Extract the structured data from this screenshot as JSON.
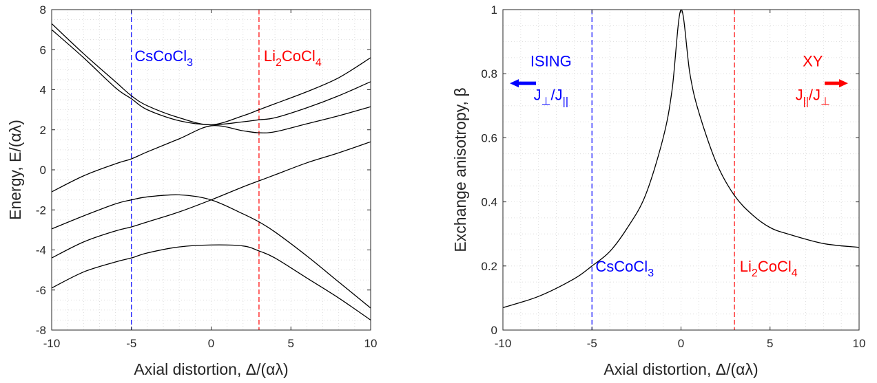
{
  "chart_data": [
    {
      "type": "line",
      "xlabel": "Axial distortion, Δ/(αλ)",
      "ylabel": "Energy, E/(αλ)",
      "xlim": [
        -10,
        10
      ],
      "ylim": [
        -8,
        8
      ],
      "xticks": [
        -10,
        -5,
        0,
        5,
        10
      ],
      "yticks": [
        -8,
        -6,
        -4,
        -2,
        0,
        2,
        4,
        6,
        8
      ],
      "grid": "minor dotted",
      "x": [
        -10,
        -8,
        -6,
        -5,
        -4,
        -2,
        0,
        2,
        3,
        4,
        6,
        8,
        10
      ],
      "series": [
        {
          "values": [
            7.3,
            5.8,
            4.4,
            3.7,
            3.2,
            2.6,
            2.25,
            2.7,
            3.0,
            3.3,
            3.9,
            4.6,
            5.6
          ],
          "color": "#000000"
        },
        {
          "values": [
            7.0,
            5.6,
            4.1,
            3.55,
            3.0,
            2.45,
            2.25,
            2.4,
            2.5,
            2.6,
            3.1,
            3.7,
            4.4
          ],
          "color": "#000000"
        },
        {
          "values": [
            -1.1,
            -0.3,
            0.3,
            0.55,
            0.9,
            1.55,
            2.2,
            1.95,
            1.85,
            1.9,
            2.3,
            2.7,
            3.15
          ],
          "color": "#000000"
        },
        {
          "values": [
            -2.95,
            -2.3,
            -1.7,
            -1.5,
            -1.35,
            -1.25,
            -1.5,
            -2.2,
            -2.6,
            -3.1,
            -4.3,
            -5.6,
            -6.9
          ],
          "color": "#000000"
        },
        {
          "values": [
            -4.4,
            -3.6,
            -3.05,
            -2.85,
            -2.6,
            -2.1,
            -1.5,
            -0.85,
            -0.55,
            -0.25,
            0.35,
            0.85,
            1.4
          ],
          "color": "#000000"
        },
        {
          "values": [
            -5.9,
            -5.1,
            -4.6,
            -4.4,
            -4.15,
            -3.85,
            -3.75,
            -3.8,
            -4.05,
            -4.4,
            -5.4,
            -6.4,
            -7.5
          ],
          "color": "#000000"
        }
      ],
      "vlines": [
        {
          "x": -5,
          "color": "#0000ff",
          "style": "dashed"
        },
        {
          "x": 3,
          "color": "#ff0000",
          "style": "dashed"
        }
      ],
      "annotations": [
        {
          "text": "CsCoCl",
          "sub": "3",
          "x": -4.8,
          "y": 5.7,
          "color": "#0000ff"
        },
        {
          "text": "Li",
          "sub": "2",
          "text2": "CoCl",
          "sub2": "4",
          "x": 3.3,
          "y": 5.7,
          "color": "#ff0000"
        }
      ]
    },
    {
      "type": "line",
      "xlabel": "Axial distortion, Δ/(αλ)",
      "ylabel": "Exchange anisotropy, β",
      "xlim": [
        -10,
        10
      ],
      "ylim": [
        0,
        1
      ],
      "xticks": [
        -10,
        -5,
        0,
        5,
        10
      ],
      "yticks": [
        0,
        0.2,
        0.4,
        0.6,
        0.8,
        1
      ],
      "grid": "minor dotted",
      "x": [
        -10,
        -8,
        -6,
        -5,
        -4,
        -3,
        -2,
        -1,
        -0.5,
        0,
        0.5,
        1,
        2,
        3,
        4,
        5,
        6,
        8,
        10
      ],
      "series": [
        {
          "values": [
            0.07,
            0.105,
            0.16,
            0.2,
            0.245,
            0.32,
            0.42,
            0.6,
            0.75,
            1.0,
            0.8,
            0.68,
            0.52,
            0.42,
            0.36,
            0.32,
            0.3,
            0.27,
            0.258
          ],
          "color": "#000000"
        }
      ],
      "vlines": [
        {
          "x": -5,
          "color": "#0000ff",
          "style": "dashed"
        },
        {
          "x": 3,
          "color": "#ff0000",
          "style": "dashed"
        }
      ],
      "annotations": [
        {
          "text": "CsCoCl",
          "sub": "3",
          "x": -4.8,
          "y": 0.2,
          "color": "#0000ff"
        },
        {
          "text": "Li",
          "sub": "2",
          "text2": "CoCl",
          "sub2": "4",
          "x": 3.3,
          "y": 0.2,
          "color": "#ff0000"
        },
        {
          "text": "ISING",
          "x": -7.3,
          "y": 0.84,
          "color": "#0000ff"
        },
        {
          "text": "J",
          "sub": "⊥",
          "text2": "/J",
          "sub2": "||",
          "x": -7.3,
          "y": 0.735,
          "color": "#0000ff"
        },
        {
          "text": "XY",
          "x": 7.4,
          "y": 0.84,
          "color": "#ff0000"
        },
        {
          "text": "J",
          "sub": "||",
          "text2": "/J",
          "sub2": "⊥",
          "x": 7.4,
          "y": 0.735,
          "color": "#ff0000"
        }
      ],
      "arrows": [
        {
          "direction": "left",
          "color": "#0000ff",
          "y": 0.77
        },
        {
          "direction": "right",
          "color": "#ff0000",
          "y": 0.77
        }
      ]
    }
  ]
}
